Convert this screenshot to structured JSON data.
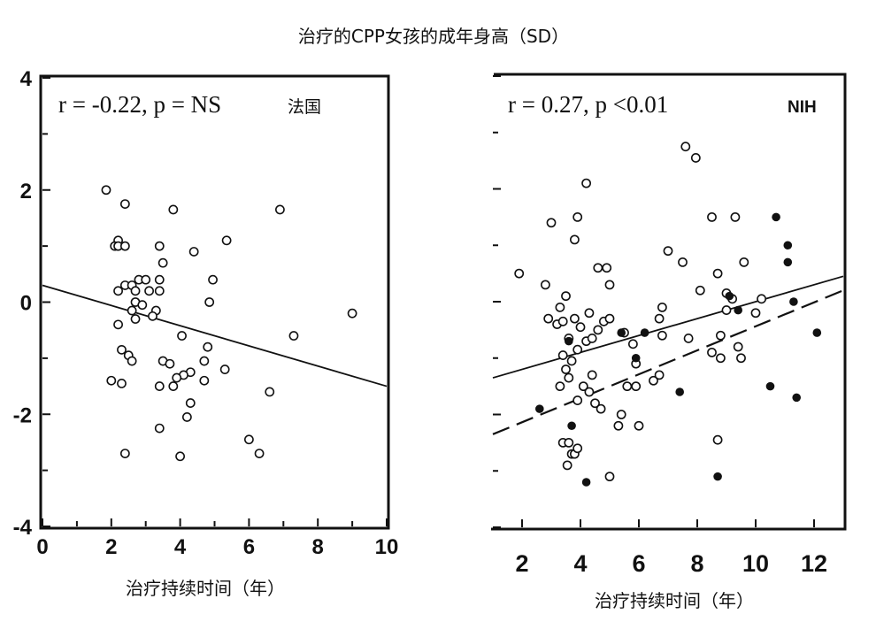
{
  "title": "治疗的CPP女孩的成年身高（SD）",
  "chart_data": [
    {
      "type": "scatter",
      "panel": "left",
      "region_label": "法国",
      "stat_label": "r = -0.22, p = NS",
      "xlabel": "治疗持续时间（年）",
      "ylabel": "",
      "xlim": [
        0,
        10
      ],
      "ylim": [
        -4,
        4
      ],
      "x_ticks": [
        0,
        2,
        4,
        6,
        8,
        10
      ],
      "y_ticks": [
        4,
        2,
        0,
        -2,
        -4
      ],
      "x_tick_labels": [
        "0",
        "2",
        "4",
        "6",
        "8",
        "10"
      ],
      "y_tick_labels": [
        "4",
        "2",
        "0",
        "-2",
        "-4"
      ],
      "series": [
        {
          "name": "patients",
          "marker": "open-circle",
          "points": [
            [
              1.85,
              2.0
            ],
            [
              2.4,
              1.75
            ],
            [
              3.8,
              1.65
            ],
            [
              6.9,
              1.65
            ],
            [
              2.2,
              1.1
            ],
            [
              2.1,
              1.0
            ],
            [
              2.2,
              1.0
            ],
            [
              2.4,
              1.0
            ],
            [
              3.4,
              1.0
            ],
            [
              5.35,
              1.1
            ],
            [
              4.4,
              0.9
            ],
            [
              3.5,
              0.7
            ],
            [
              2.8,
              0.4
            ],
            [
              3.0,
              0.4
            ],
            [
              3.4,
              0.4
            ],
            [
              4.95,
              0.4
            ],
            [
              2.2,
              0.2
            ],
            [
              2.4,
              0.3
            ],
            [
              2.6,
              0.3
            ],
            [
              2.7,
              0.2
            ],
            [
              3.1,
              0.2
            ],
            [
              3.4,
              0.2
            ],
            [
              2.7,
              0.0
            ],
            [
              2.9,
              -0.05
            ],
            [
              4.85,
              0.0
            ],
            [
              2.6,
              -0.15
            ],
            [
              3.3,
              -0.15
            ],
            [
              3.2,
              -0.25
            ],
            [
              2.7,
              -0.3
            ],
            [
              2.2,
              -0.4
            ],
            [
              4.05,
              -0.6
            ],
            [
              7.3,
              -0.6
            ],
            [
              9.0,
              -0.2
            ],
            [
              2.3,
              -0.85
            ],
            [
              2.5,
              -0.95
            ],
            [
              2.6,
              -1.05
            ],
            [
              4.8,
              -0.8
            ],
            [
              4.7,
              -1.05
            ],
            [
              3.5,
              -1.05
            ],
            [
              3.7,
              -1.1
            ],
            [
              5.3,
              -1.2
            ],
            [
              4.3,
              -1.25
            ],
            [
              4.1,
              -1.3
            ],
            [
              3.9,
              -1.35
            ],
            [
              3.8,
              -1.5
            ],
            [
              2.0,
              -1.4
            ],
            [
              2.3,
              -1.45
            ],
            [
              3.4,
              -1.5
            ],
            [
              4.7,
              -1.4
            ],
            [
              6.6,
              -1.6
            ],
            [
              4.3,
              -1.8
            ],
            [
              4.2,
              -2.05
            ],
            [
              3.4,
              -2.25
            ],
            [
              6.0,
              -2.45
            ],
            [
              6.3,
              -2.7
            ],
            [
              2.4,
              -2.7
            ],
            [
              4.0,
              -2.75
            ]
          ]
        }
      ],
      "regression_lines": [
        {
          "style": "solid",
          "x": [
            0,
            10
          ],
          "y": [
            0.3,
            -1.5
          ]
        }
      ]
    },
    {
      "type": "scatter",
      "panel": "right",
      "region_label": "NIH",
      "stat_label": "r = 0.27, p <0.01",
      "xlabel": "治疗持续时间（年）",
      "ylabel": "",
      "xlim": [
        1,
        13
      ],
      "ylim": [
        -4,
        4
      ],
      "x_ticks": [
        2,
        4,
        6,
        8,
        10,
        12
      ],
      "y_ticks": [
        4,
        2,
        0,
        -2,
        -4
      ],
      "x_tick_labels": [
        "2",
        "4",
        "6",
        "8",
        "10",
        "12"
      ],
      "series": [
        {
          "name": "open",
          "marker": "open-circle",
          "points": [
            [
              1.9,
              0.5
            ],
            [
              2.8,
              0.3
            ],
            [
              2.9,
              -0.3
            ],
            [
              3.0,
              1.4
            ],
            [
              3.2,
              -0.4
            ],
            [
              3.3,
              -0.1
            ],
            [
              3.4,
              -0.35
            ],
            [
              3.5,
              0.1
            ],
            [
              3.6,
              -0.65
            ],
            [
              3.4,
              -0.95
            ],
            [
              3.5,
              -1.2
            ],
            [
              3.7,
              -1.05
            ],
            [
              3.9,
              -0.85
            ],
            [
              3.6,
              -1.35
            ],
            [
              3.3,
              -1.5
            ],
            [
              3.9,
              -1.75
            ],
            [
              4.1,
              -1.5
            ],
            [
              4.3,
              -1.6
            ],
            [
              3.8,
              1.1
            ],
            [
              3.9,
              1.5
            ],
            [
              4.2,
              2.1
            ],
            [
              3.8,
              -0.3
            ],
            [
              4.0,
              -0.45
            ],
            [
              4.2,
              -0.7
            ],
            [
              4.4,
              -0.65
            ],
            [
              4.3,
              -0.2
            ],
            [
              4.6,
              -0.5
            ],
            [
              4.8,
              -0.35
            ],
            [
              5.0,
              -0.3
            ],
            [
              4.6,
              0.6
            ],
            [
              4.9,
              0.6
            ],
            [
              5.0,
              0.3
            ],
            [
              3.4,
              -2.5
            ],
            [
              3.6,
              -2.5
            ],
            [
              3.7,
              -2.7
            ],
            [
              3.8,
              -2.7
            ],
            [
              3.9,
              -2.6
            ],
            [
              3.55,
              -2.9
            ],
            [
              4.4,
              -1.3
            ],
            [
              4.5,
              -1.8
            ],
            [
              4.7,
              -1.9
            ],
            [
              5.0,
              -3.1
            ],
            [
              5.4,
              -2.0
            ],
            [
              5.3,
              -2.2
            ],
            [
              5.6,
              -1.5
            ],
            [
              5.9,
              -1.5
            ],
            [
              6.0,
              -2.2
            ],
            [
              5.5,
              -0.55
            ],
            [
              5.8,
              -0.75
            ],
            [
              5.9,
              -1.1
            ],
            [
              6.5,
              -1.4
            ],
            [
              6.7,
              -1.3
            ],
            [
              6.7,
              -0.3
            ],
            [
              6.8,
              -0.1
            ],
            [
              6.8,
              -0.6
            ],
            [
              7.0,
              0.9
            ],
            [
              7.5,
              0.7
            ],
            [
              7.6,
              2.75
            ],
            [
              7.95,
              2.55
            ],
            [
              7.7,
              -0.65
            ],
            [
              8.1,
              0.2
            ],
            [
              8.5,
              -0.9
            ],
            [
              8.7,
              0.5
            ],
            [
              8.8,
              -0.6
            ],
            [
              8.8,
              -1.0
            ],
            [
              8.5,
              1.5
            ],
            [
              9.3,
              1.5
            ],
            [
              9.0,
              0.15
            ],
            [
              9.2,
              0.05
            ],
            [
              9.0,
              -0.15
            ],
            [
              9.4,
              -0.8
            ],
            [
              9.5,
              -1.0
            ],
            [
              9.6,
              0.7
            ],
            [
              10.0,
              -0.2
            ],
            [
              10.2,
              0.05
            ],
            [
              8.7,
              -2.45
            ]
          ]
        },
        {
          "name": "filled",
          "marker": "filled-circle",
          "points": [
            [
              2.6,
              -1.9
            ],
            [
              3.6,
              -0.7
            ],
            [
              3.7,
              -2.2
            ],
            [
              4.2,
              -3.2
            ],
            [
              5.4,
              -0.55
            ],
            [
              5.9,
              -1.0
            ],
            [
              6.2,
              -0.55
            ],
            [
              7.4,
              -1.6
            ],
            [
              8.7,
              -3.1
            ],
            [
              9.1,
              0.1
            ],
            [
              9.4,
              -0.15
            ],
            [
              10.5,
              -1.5
            ],
            [
              10.7,
              1.5
            ],
            [
              11.1,
              1.0
            ],
            [
              11.1,
              0.7
            ],
            [
              11.3,
              0.0
            ],
            [
              11.4,
              -1.7
            ],
            [
              12.1,
              -0.55
            ]
          ]
        }
      ],
      "regression_lines": [
        {
          "style": "solid",
          "x": [
            1,
            13
          ],
          "y": [
            -1.35,
            0.45
          ]
        },
        {
          "style": "dashed",
          "x": [
            1,
            13
          ],
          "y": [
            -2.35,
            0.2
          ]
        }
      ]
    }
  ]
}
